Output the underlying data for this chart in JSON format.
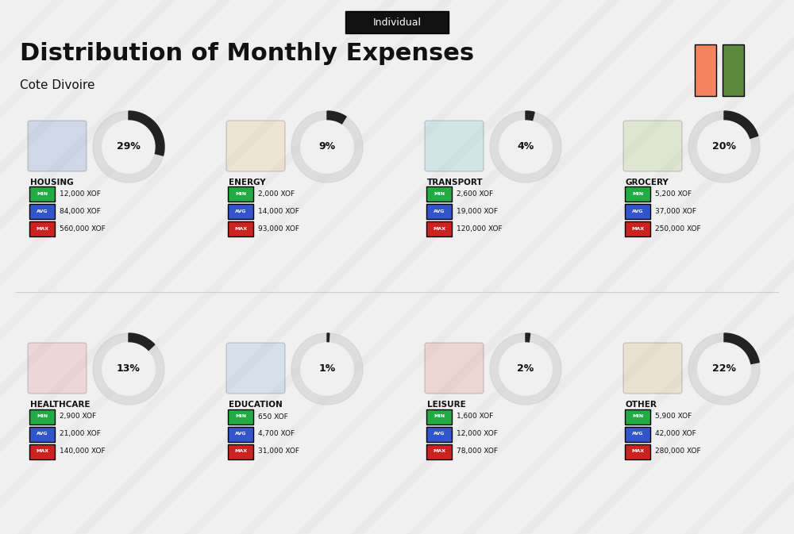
{
  "title": "Distribution of Monthly Expenses",
  "subtitle": "Cote Divoire",
  "badge": "Individual",
  "bg_color": "#f0f0f0",
  "flag_colors": [
    "#F4845F",
    "#5A8A3C"
  ],
  "categories": [
    {
      "name": "HOUSING",
      "pct": 29,
      "min": "12,000 XOF",
      "avg": "84,000 XOF",
      "max": "560,000 XOF",
      "row": 0,
      "col": 0
    },
    {
      "name": "ENERGY",
      "pct": 9,
      "min": "2,000 XOF",
      "avg": "14,000 XOF",
      "max": "93,000 XOF",
      "row": 0,
      "col": 1
    },
    {
      "name": "TRANSPORT",
      "pct": 4,
      "min": "2,600 XOF",
      "avg": "19,000 XOF",
      "max": "120,000 XOF",
      "row": 0,
      "col": 2
    },
    {
      "name": "GROCERY",
      "pct": 20,
      "min": "5,200 XOF",
      "avg": "37,000 XOF",
      "max": "250,000 XOF",
      "row": 0,
      "col": 3
    },
    {
      "name": "HEALTHCARE",
      "pct": 13,
      "min": "2,900 XOF",
      "avg": "21,000 XOF",
      "max": "140,000 XOF",
      "row": 1,
      "col": 0
    },
    {
      "name": "EDUCATION",
      "pct": 1,
      "min": "650 XOF",
      "avg": "4,700 XOF",
      "max": "31,000 XOF",
      "row": 1,
      "col": 1
    },
    {
      "name": "LEISURE",
      "pct": 2,
      "min": "1,600 XOF",
      "avg": "12,000 XOF",
      "max": "78,000 XOF",
      "row": 1,
      "col": 2
    },
    {
      "name": "OTHER",
      "pct": 22,
      "min": "5,900 XOF",
      "avg": "42,000 XOF",
      "max": "280,000 XOF",
      "row": 1,
      "col": 3
    }
  ],
  "min_color": "#22aa44",
  "avg_color": "#3355cc",
  "max_color": "#cc2222",
  "label_color": "#ffffff",
  "circle_bg": "#d8d8d8",
  "circle_filled": "#333333",
  "arc_bg_color": "#cccccc",
  "arc_filled_color": "#222222",
  "stripe_color": "#e8e8e8",
  "header_bg": "#111111",
  "header_text": "#ffffff"
}
